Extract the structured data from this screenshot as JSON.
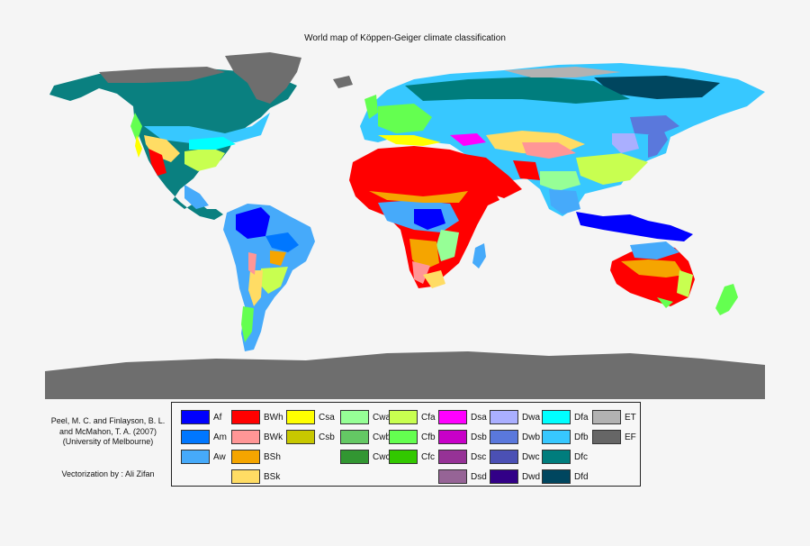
{
  "map": {
    "title": "World map of Köppen-Geiger climate classification",
    "citation": [
      "Peel, M. C. and Finlayson, B. L.",
      "and McMahon, T. A. (2007)",
      "(University of Melbourne)"
    ],
    "vectorization": "Vectorization by : Ali Zifan",
    "land_base_color": "#c8c8c8",
    "antarctica_color": "#6e6e6e"
  },
  "legend": {
    "columns": [
      [
        {
          "code": "Af",
          "color": "#0000fe"
        },
        {
          "code": "Am",
          "color": "#0077ff"
        },
        {
          "code": "Aw",
          "color": "#46aafa"
        }
      ],
      [
        {
          "code": "BWh",
          "color": "#ff0000"
        },
        {
          "code": "BWk",
          "color": "#ff9696"
        },
        {
          "code": "BSh",
          "color": "#f5a500"
        },
        {
          "code": "BSk",
          "color": "#ffdc64"
        }
      ],
      [
        {
          "code": "Csa",
          "color": "#ffff00"
        },
        {
          "code": "Csb",
          "color": "#c8c800"
        }
      ],
      [
        {
          "code": "Cwa",
          "color": "#96ff96"
        },
        {
          "code": "Cwb",
          "color": "#64c864"
        },
        {
          "code": "Cwc",
          "color": "#329632"
        }
      ],
      [
        {
          "code": "Cfa",
          "color": "#c8ff50"
        },
        {
          "code": "Cfb",
          "color": "#64ff50"
        },
        {
          "code": "Cfc",
          "color": "#32c800"
        }
      ],
      [
        {
          "code": "Dsa",
          "color": "#ff00ff"
        },
        {
          "code": "Dsb",
          "color": "#c800c8"
        },
        {
          "code": "Dsc",
          "color": "#963296"
        },
        {
          "code": "Dsd",
          "color": "#966496"
        }
      ],
      [
        {
          "code": "Dwa",
          "color": "#aaafff"
        },
        {
          "code": "Dwb",
          "color": "#5a78dc"
        },
        {
          "code": "Dwc",
          "color": "#4b50b4"
        },
        {
          "code": "Dwd",
          "color": "#320087"
        }
      ],
      [
        {
          "code": "Dfa",
          "color": "#00ffff"
        },
        {
          "code": "Dfb",
          "color": "#37c8ff"
        },
        {
          "code": "Dfc",
          "color": "#007d7d"
        },
        {
          "code": "Dfd",
          "color": "#00465f"
        }
      ],
      [
        {
          "code": "ET",
          "color": "#b2b2b2"
        },
        {
          "code": "EF",
          "color": "#666666"
        }
      ]
    ]
  }
}
